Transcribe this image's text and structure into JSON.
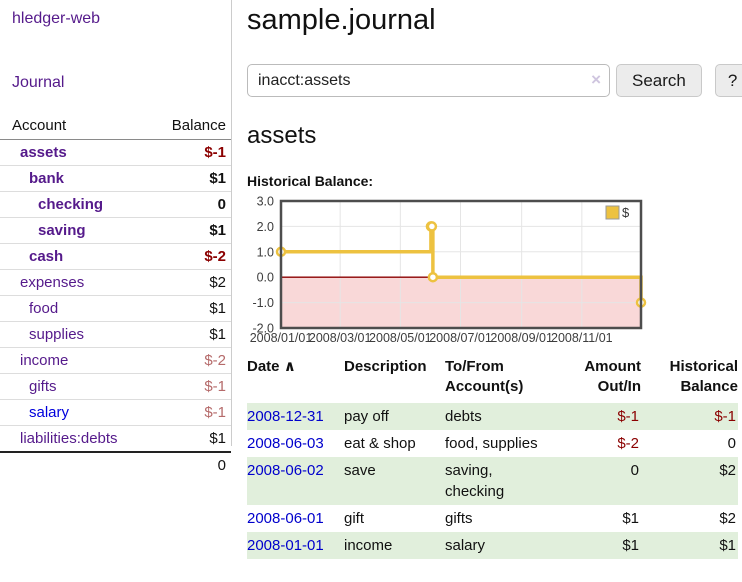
{
  "colors": {
    "link_purple": "#551a8b",
    "link_blue": "#0000dd",
    "negative": "#8b0000",
    "negative_muted": "#b56a6a",
    "row_green": "#e1efdc",
    "series_gold": "#edc240"
  },
  "sidebar": {
    "brand": "hledger-web",
    "nav_journal": "Journal",
    "header": {
      "account": "Account",
      "balance": "Balance"
    },
    "accounts": [
      {
        "name": "assets",
        "depth": 1,
        "bold": true,
        "link_color": "purple",
        "balance": "$-1",
        "balance_style": "neg-strong"
      },
      {
        "name": "bank",
        "depth": 2,
        "bold": true,
        "link_color": "purple",
        "balance": "$1",
        "balance_style": "strong"
      },
      {
        "name": "checking",
        "depth": 3,
        "bold": true,
        "link_color": "purple",
        "balance": "0",
        "balance_style": "strong"
      },
      {
        "name": "saving",
        "depth": 3,
        "bold": true,
        "link_color": "purple",
        "balance": "$1",
        "balance_style": "strong"
      },
      {
        "name": "cash",
        "depth": 2,
        "bold": true,
        "link_color": "purple",
        "balance": "$-2",
        "balance_style": "neg-strong"
      },
      {
        "name": "expenses",
        "depth": 1,
        "bold": false,
        "link_color": "purple",
        "balance": "$2",
        "balance_style": "normal"
      },
      {
        "name": "food",
        "depth": 2,
        "bold": false,
        "link_color": "purple",
        "balance": "$1",
        "balance_style": "normal"
      },
      {
        "name": "supplies",
        "depth": 2,
        "bold": false,
        "link_color": "purple",
        "balance": "$1",
        "balance_style": "normal"
      },
      {
        "name": "income",
        "depth": 1,
        "bold": false,
        "link_color": "purple",
        "balance": "$-2",
        "balance_style": "neg-muted"
      },
      {
        "name": "gifts",
        "depth": 2,
        "bold": false,
        "link_color": "purple",
        "balance": "$-1",
        "balance_style": "neg-muted"
      },
      {
        "name": "salary",
        "depth": 2,
        "bold": false,
        "link_color": "blue",
        "balance": "$-1",
        "balance_style": "neg-muted"
      },
      {
        "name": "liabilities:debts",
        "depth": 1,
        "bold": false,
        "link_color": "purple",
        "balance": "$1",
        "balance_style": "normal"
      }
    ],
    "total": "0"
  },
  "main": {
    "title": "sample.journal",
    "search": {
      "value": "inacct:assets",
      "clear_icon": "×",
      "button": "Search",
      "help": "?"
    },
    "account_title": "assets"
  },
  "chart_data": {
    "type": "line",
    "title": "Historical Balance:",
    "x_start": "2008-01-01",
    "x_end": "2008-12-31",
    "series": [
      {
        "name": "$",
        "color": "#edc240",
        "steps": true,
        "points": [
          [
            "2008-01-01",
            1
          ],
          [
            "2008-06-01",
            2
          ],
          [
            "2008-06-02",
            2
          ],
          [
            "2008-06-03",
            0
          ],
          [
            "2008-12-31",
            -1
          ]
        ]
      }
    ],
    "ylim": [
      -2,
      3
    ],
    "yticks": [
      3,
      2,
      1,
      0,
      -1,
      -2
    ],
    "ytick_labels": [
      "3.0",
      "2.0",
      "1.0",
      "0.0",
      "-1.0",
      "-2.0"
    ],
    "xtick_labels": [
      "2008/01/01",
      "2008/03/01",
      "2008/05/01",
      "2008/07/01",
      "2008/09/01",
      "2008/11/01"
    ],
    "grid": true,
    "legend_position": "top-right",
    "legend_label": "$",
    "grid_color": "#e5e5e5",
    "border_color": "#4d4d4d",
    "negative_region_color": "#f9d8d8",
    "zero_line_color": "#8b0000"
  },
  "register": {
    "headers": {
      "date": "Date",
      "sort_icon": "∧",
      "description": "Description",
      "account_line1": "To/From",
      "account_line2": "Account(s)",
      "amount_line1": "Amount",
      "amount_line2": "Out/In",
      "balance_line1": "Historical",
      "balance_line2": "Balance"
    },
    "rows": [
      {
        "date": "2008-12-31",
        "description": "pay off",
        "accounts": [
          "debts"
        ],
        "amount": "$-1",
        "amount_negative": true,
        "balance": "$-1",
        "balance_negative": true
      },
      {
        "date": "2008-06-03",
        "description": "eat & shop",
        "accounts": [
          "food, supplies"
        ],
        "amount": "$-2",
        "amount_negative": true,
        "balance": "0",
        "balance_negative": false
      },
      {
        "date": "2008-06-02",
        "description": "save",
        "accounts": [
          "saving,",
          "checking"
        ],
        "amount": "0",
        "amount_negative": false,
        "balance": "$2",
        "balance_negative": false
      },
      {
        "date": "2008-06-01",
        "description": "gift",
        "accounts": [
          "gifts"
        ],
        "amount": "$1",
        "amount_negative": false,
        "balance": "$2",
        "balance_negative": false
      },
      {
        "date": "2008-01-01",
        "description": "income",
        "accounts": [
          "salary"
        ],
        "amount": "$1",
        "amount_negative": false,
        "balance": "$1",
        "balance_negative": false
      }
    ]
  }
}
